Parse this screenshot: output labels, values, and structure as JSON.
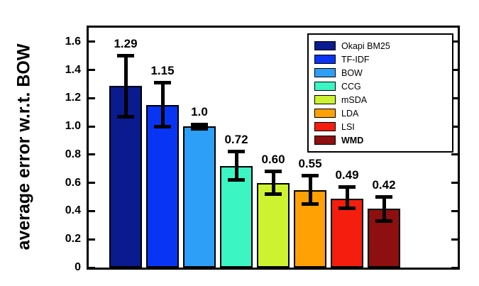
{
  "chart_data": {
    "type": "bar",
    "title": "",
    "xlabel": "",
    "ylabel": "average error w.r.t. BOW",
    "ylim": [
      0,
      1.7
    ],
    "yticks": [
      0,
      0.2,
      0.4,
      0.6,
      0.8,
      1.0,
      1.2,
      1.4,
      1.6
    ],
    "ytick_labels": [
      "0",
      "0.2",
      "0.4",
      "0.6",
      "0.8",
      "1.0",
      "1.2",
      "1.4",
      "1.6"
    ],
    "grid": false,
    "legend_position": "top-right",
    "series": [
      {
        "name": "Okapi BM25",
        "value": 1.29,
        "label": "1.29",
        "err_low": 1.07,
        "err_high": 1.5,
        "color": "#0a1a8f",
        "bold": false
      },
      {
        "name": "TF-IDF",
        "value": 1.15,
        "label": "1.15",
        "err_low": 1.0,
        "err_high": 1.31,
        "color": "#0834f4",
        "bold": false
      },
      {
        "name": "BOW",
        "value": 1.0,
        "label": "1.0",
        "err_low": 0.985,
        "err_high": 1.015,
        "color": "#2d9ff7",
        "bold": false
      },
      {
        "name": "CCG",
        "value": 0.72,
        "label": "0.72",
        "err_low": 0.62,
        "err_high": 0.82,
        "color": "#3bf5c3",
        "bold": false
      },
      {
        "name": "mSDA",
        "value": 0.6,
        "label": "0.60",
        "err_low": 0.52,
        "err_high": 0.68,
        "color": "#cdf230",
        "bold": false
      },
      {
        "name": "LDA",
        "value": 0.55,
        "label": "0.55",
        "err_low": 0.45,
        "err_high": 0.65,
        "color": "#ffa005",
        "bold": false
      },
      {
        "name": "LSI",
        "value": 0.49,
        "label": "0.49",
        "err_low": 0.42,
        "err_high": 0.57,
        "color": "#f51d0d",
        "bold": false
      },
      {
        "name": "WMD",
        "value": 0.42,
        "label": "0.42",
        "err_low": 0.33,
        "err_high": 0.5,
        "color": "#8e0f0f",
        "bold": true
      }
    ]
  }
}
